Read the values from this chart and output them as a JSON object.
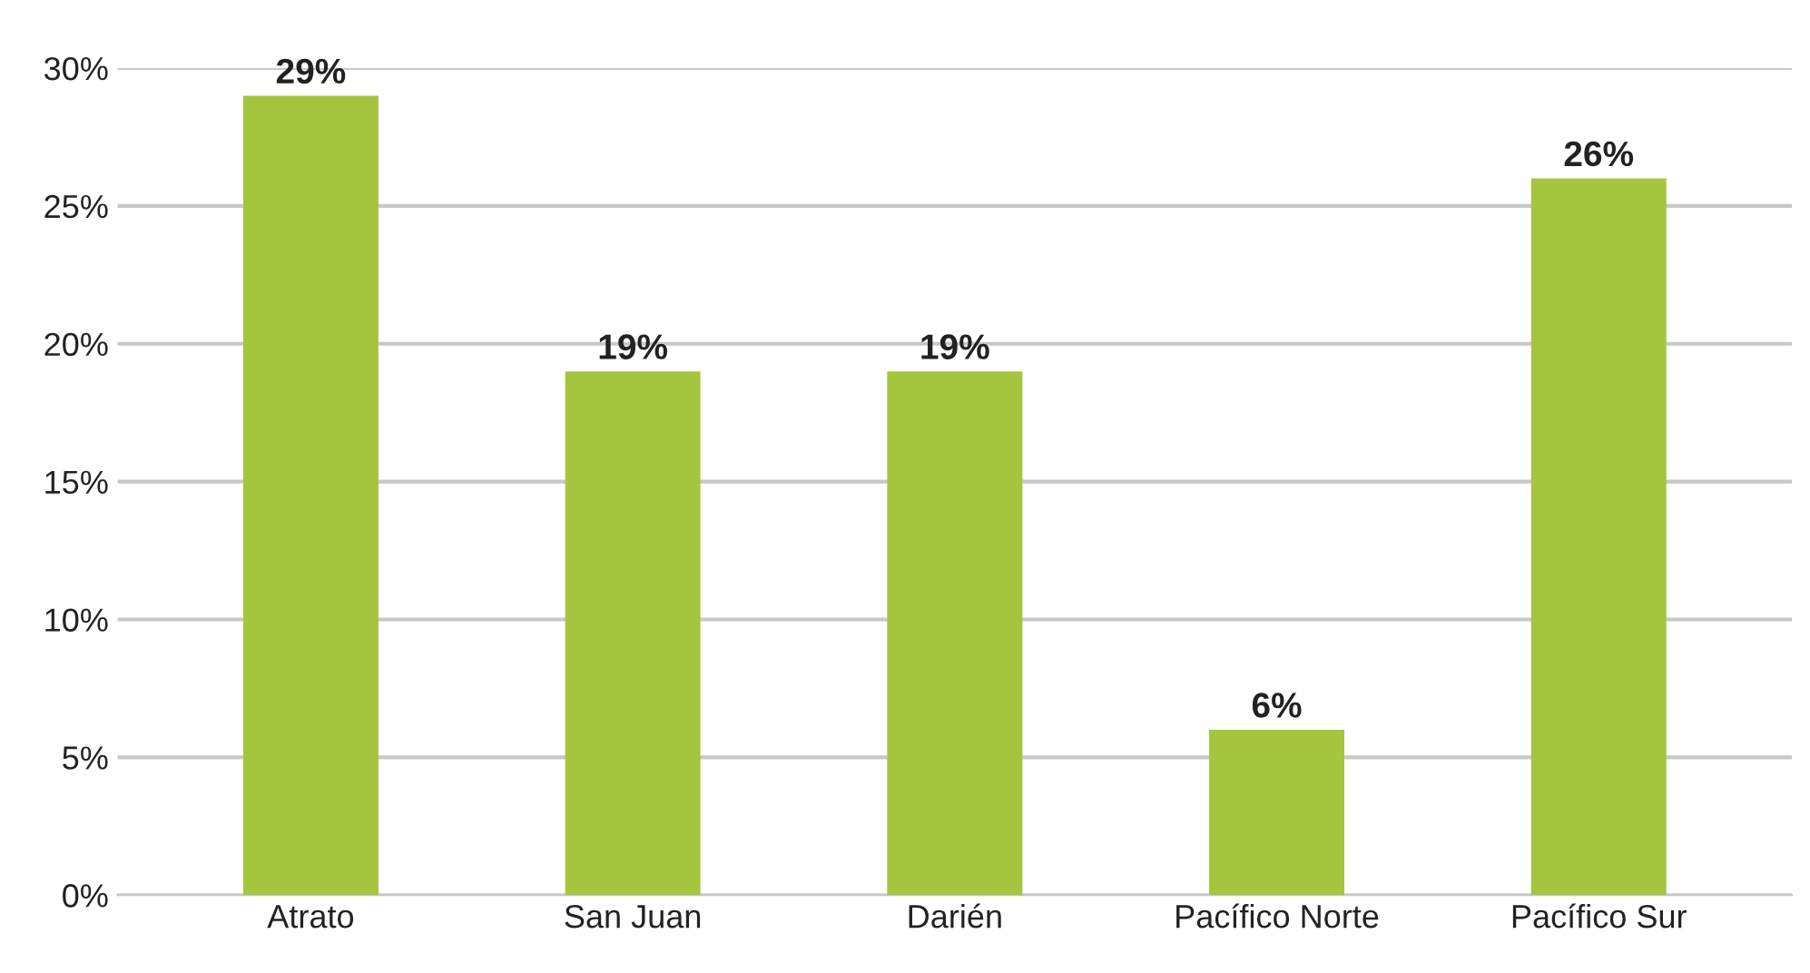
{
  "chart_data": {
    "type": "bar",
    "categories": [
      "Atrato",
      "San Juan",
      "Darién",
      "Pacífico Norte",
      "Pacífico Sur"
    ],
    "values": [
      29,
      19,
      19,
      6,
      26
    ],
    "color": "#a6c53f",
    "value_labels": [
      "29%",
      "19%",
      "19%",
      "6%",
      "26%"
    ],
    "ylim": [
      0,
      30
    ],
    "yticks": [
      {
        "value": 0,
        "label": "0%"
      },
      {
        "value": 5,
        "label": "5%"
      },
      {
        "value": 10,
        "label": "10%"
      },
      {
        "value": 15,
        "label": "15%"
      },
      {
        "value": 20,
        "label": "20%"
      },
      {
        "value": 25,
        "label": "25%"
      },
      {
        "value": 30,
        "label": "30%"
      }
    ],
    "grid": "y"
  }
}
